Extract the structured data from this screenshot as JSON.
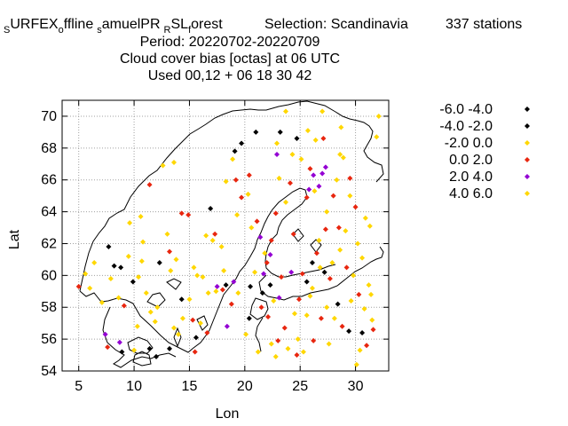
{
  "title_lines": [
    "SURFEX offline samuelPR RSL forest   Selection: Scandinavia    337 stations",
    "Period: 20220702-20220709",
    "Cloud cover bias [octas] at  06 UTC",
    "Used  00,12  + 06 18 30 42"
  ],
  "title_parts": {
    "s1": "S",
    "surfex": "URFEX",
    "o": "o",
    "ffline": "ffline",
    "s2": "s",
    "amuel": "amuelPR",
    "r": "R",
    "sl": "SL",
    "f": "f",
    "orest": "orest",
    "selection": "Selection: Scandinavia",
    "stations": "337 stations"
  },
  "chart_data": {
    "type": "scatter",
    "xlabel": "Lon",
    "ylabel": "Lat",
    "xlim": [
      3.5,
      33
    ],
    "ylim": [
      54,
      71
    ],
    "xticks": [
      5,
      10,
      15,
      20,
      25,
      30
    ],
    "yticks": [
      54,
      56,
      58,
      60,
      62,
      64,
      66,
      68,
      70
    ],
    "grid": true,
    "legend_position": "outside-right",
    "series": [
      {
        "name": "-6.0 -4.0",
        "color": "#000000",
        "points": [
          [
            19.1,
            67.8
          ],
          [
            21.0,
            69.0
          ],
          [
            19.7,
            68.3
          ]
        ]
      },
      {
        "name": "-4.0 -2.0",
        "color": "#000000",
        "points": [
          [
            8.2,
            60.6
          ],
          [
            8.8,
            60.5
          ],
          [
            9.9,
            59.6
          ],
          [
            7.7,
            61.8
          ],
          [
            12.3,
            60.8
          ],
          [
            14.3,
            58.5
          ],
          [
            16.9,
            64.2
          ],
          [
            20.5,
            59.3
          ],
          [
            21.6,
            58.9
          ],
          [
            22.3,
            59.4
          ],
          [
            23.2,
            69.0
          ],
          [
            24.7,
            68.6
          ],
          [
            25.6,
            59.6
          ],
          [
            26.1,
            60.8
          ],
          [
            27.2,
            60.2
          ],
          [
            28.4,
            58.2
          ],
          [
            29.4,
            56.5
          ],
          [
            30.6,
            56.4
          ],
          [
            15.6,
            56.1
          ],
          [
            18.3,
            59.4
          ],
          [
            20.4,
            57.3
          ],
          [
            13.2,
            55.4
          ],
          [
            12.0,
            54.9
          ],
          [
            11.4,
            55.4
          ],
          [
            8.9,
            55.2
          ]
        ]
      },
      {
        "name": "-2.0 0.0",
        "color": "#ffd700",
        "points": [
          [
            5.6,
            60.1
          ],
          [
            6.0,
            59.2
          ],
          [
            6.4,
            60.8
          ],
          [
            7.1,
            58.3
          ],
          [
            8.6,
            58.6
          ],
          [
            9.5,
            61.2
          ],
          [
            9.6,
            63.3
          ],
          [
            10.4,
            59.9
          ],
          [
            10.7,
            60.9
          ],
          [
            10.8,
            62.1
          ],
          [
            10.6,
            63.7
          ],
          [
            11.1,
            58.9
          ],
          [
            11.5,
            57.7
          ],
          [
            11.9,
            57.1
          ],
          [
            12.6,
            66.9
          ],
          [
            13.0,
            62.6
          ],
          [
            13.3,
            60.3
          ],
          [
            13.8,
            61.0
          ],
          [
            13.6,
            67.1
          ],
          [
            14.0,
            56.3
          ],
          [
            14.4,
            57.3
          ],
          [
            15.0,
            58.5
          ],
          [
            15.4,
            60.5
          ],
          [
            16.0,
            57.0
          ],
          [
            16.2,
            59.9
          ],
          [
            16.5,
            62.5
          ],
          [
            17.1,
            62.2
          ],
          [
            17.4,
            59.0
          ],
          [
            18.1,
            60.3
          ],
          [
            18.3,
            65.9
          ],
          [
            18.9,
            67.3
          ],
          [
            19.3,
            63.8
          ],
          [
            20.3,
            65.1
          ],
          [
            20.6,
            63.0
          ],
          [
            20.9,
            60.2
          ],
          [
            21.8,
            61.4
          ],
          [
            22.4,
            55.7
          ],
          [
            22.6,
            58.4
          ],
          [
            23.1,
            66.1
          ],
          [
            23.7,
            64.6
          ],
          [
            24.5,
            57.6
          ],
          [
            25.3,
            55.2
          ],
          [
            25.7,
            69.1
          ],
          [
            25.9,
            58.7
          ],
          [
            26.3,
            65.3
          ],
          [
            26.8,
            60.5
          ],
          [
            27.4,
            64.0
          ],
          [
            27.6,
            55.7
          ],
          [
            27.9,
            60.8
          ],
          [
            28.3,
            66.0
          ],
          [
            28.7,
            69.3
          ],
          [
            29.1,
            62.8
          ],
          [
            29.6,
            58.4
          ],
          [
            30.1,
            54.4
          ],
          [
            30.4,
            55.3
          ],
          [
            30.6,
            61.1
          ],
          [
            30.9,
            63.6
          ],
          [
            31.2,
            59.4
          ],
          [
            31.5,
            57.2
          ],
          [
            31.9,
            68.7
          ],
          [
            32.1,
            70.0
          ],
          [
            26.4,
            68.5
          ],
          [
            27.0,
            70.3
          ],
          [
            28.9,
            67.4
          ],
          [
            24.3,
            67.6
          ],
          [
            22.9,
            68.3
          ]
        ]
      },
      {
        "name": "0.0 2.0",
        "color": "#e8260f",
        "points": [
          [
            5.0,
            59.3
          ],
          [
            7.6,
            55.5
          ],
          [
            9.1,
            58.1
          ],
          [
            11.4,
            65.7
          ],
          [
            13.2,
            61.5
          ],
          [
            14.3,
            63.9
          ],
          [
            14.9,
            63.8
          ],
          [
            15.3,
            57.2
          ],
          [
            15.5,
            55.2
          ],
          [
            16.6,
            56.4
          ],
          [
            17.3,
            62.6
          ],
          [
            18.0,
            59.1
          ],
          [
            18.8,
            58.2
          ],
          [
            19.2,
            66.0
          ],
          [
            19.7,
            64.9
          ],
          [
            20.4,
            66.3
          ],
          [
            21.1,
            63.4
          ],
          [
            21.5,
            58.0
          ],
          [
            22.0,
            60.8
          ],
          [
            22.4,
            62.2
          ],
          [
            22.8,
            63.9
          ],
          [
            23.3,
            59.9
          ],
          [
            23.6,
            56.7
          ],
          [
            24.1,
            65.8
          ],
          [
            24.4,
            62.6
          ],
          [
            24.9,
            58.5
          ],
          [
            25.2,
            60.1
          ],
          [
            25.6,
            64.9
          ],
          [
            25.9,
            66.7
          ],
          [
            26.5,
            61.4
          ],
          [
            26.9,
            57.3
          ],
          [
            27.1,
            68.6
          ],
          [
            27.3,
            62.9
          ],
          [
            27.7,
            59.8
          ],
          [
            28.0,
            65.0
          ],
          [
            28.5,
            63.0
          ],
          [
            28.8,
            56.8
          ],
          [
            29.2,
            60.5
          ],
          [
            29.5,
            66.1
          ],
          [
            30.0,
            64.3
          ],
          [
            30.3,
            58.8
          ],
          [
            31.0,
            55.6
          ],
          [
            31.6,
            56.6
          ],
          [
            26.2,
            55.9
          ],
          [
            24.7,
            55.0
          ],
          [
            23.0,
            55.9
          ],
          [
            22.1,
            57.4
          ]
        ]
      },
      {
        "name": "2.0 4.0",
        "color": "#9400d3",
        "points": [
          [
            7.4,
            56.3
          ],
          [
            8.7,
            55.8
          ],
          [
            17.5,
            59.3
          ],
          [
            19.0,
            59.6
          ],
          [
            21.7,
            60.1
          ],
          [
            22.3,
            61.3
          ],
          [
            22.9,
            67.6
          ],
          [
            23.1,
            58.6
          ],
          [
            25.8,
            65.4
          ],
          [
            26.2,
            66.3
          ],
          [
            26.7,
            65.6
          ],
          [
            27.0,
            66.4
          ],
          [
            27.3,
            66.8
          ],
          [
            24.2,
            60.2
          ],
          [
            18.4,
            56.8
          ],
          [
            21.4,
            62.4
          ]
        ]
      },
      {
        "name": "4.0 6.0",
        "color": "#ffd700",
        "points": [
          [
            7.9,
            59.8
          ],
          [
            10.3,
            56.8
          ],
          [
            10.0,
            55.3
          ],
          [
            12.1,
            58.0
          ],
          [
            13.6,
            56.7
          ],
          [
            15.7,
            60.0
          ],
          [
            16.7,
            58.9
          ],
          [
            17.9,
            61.8
          ],
          [
            19.4,
            58.9
          ],
          [
            20.1,
            56.3
          ],
          [
            21.2,
            55.2
          ],
          [
            22.8,
            54.9
          ],
          [
            23.9,
            55.4
          ],
          [
            24.8,
            56.0
          ],
          [
            25.6,
            57.5
          ],
          [
            26.1,
            59.2
          ],
          [
            26.7,
            62.2
          ],
          [
            27.4,
            58.0
          ],
          [
            28.1,
            57.3
          ],
          [
            28.6,
            61.6
          ],
          [
            29.8,
            60.0
          ],
          [
            30.2,
            62.0
          ],
          [
            30.8,
            57.9
          ],
          [
            31.3,
            63.1
          ],
          [
            29.5,
            65.0
          ],
          [
            28.6,
            67.6
          ],
          [
            31.4,
            58.8
          ],
          [
            23.7,
            70.3
          ],
          [
            25.1,
            67.3
          ]
        ]
      }
    ]
  }
}
